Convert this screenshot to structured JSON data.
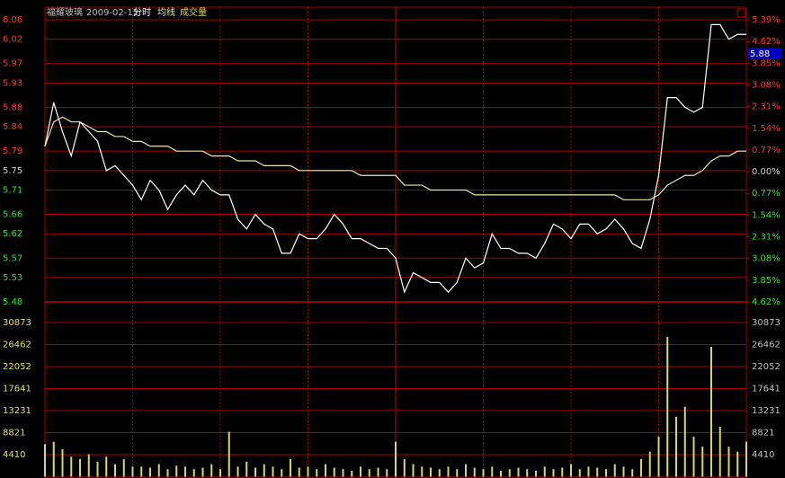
{
  "header": {
    "title": "福耀玻璃",
    "date": "2009-02-12",
    "labels": [
      "分时",
      "均线",
      "成交量"
    ],
    "price_box": 5.88
  },
  "chart_data": [
    {
      "type": "line",
      "grid": true,
      "ylim": [
        5.48,
        6.06
      ],
      "yticks": [
        6.06,
        6.02,
        5.97,
        5.93,
        5.88,
        5.84,
        5.79,
        5.75,
        5.71,
        5.66,
        5.62,
        5.57,
        5.53,
        5.48
      ],
      "y2lim": [
        -4.62,
        5.39
      ],
      "y2ticks": [
        {
          "value": 5.39,
          "label": "5.39%"
        },
        {
          "value": 4.62,
          "label": "4.62%"
        },
        {
          "value": 3.85,
          "label": "3.85%"
        },
        {
          "value": 3.08,
          "label": "3.08%"
        },
        {
          "value": 2.31,
          "label": "2.31%"
        },
        {
          "value": 1.54,
          "label": "1.54%"
        },
        {
          "value": 0.77,
          "label": "0.77%"
        },
        {
          "value": 0,
          "label": "0.00%"
        },
        {
          "value": -0.77,
          "label": "0.77%"
        },
        {
          "value": -1.54,
          "label": "1.54%"
        },
        {
          "value": -2.31,
          "label": "2.31%"
        },
        {
          "value": -3.08,
          "label": "3.08%"
        },
        {
          "value": -3.85,
          "label": "3.85%"
        },
        {
          "value": -4.62,
          "label": "4.62%"
        }
      ],
      "series": [
        {
          "color": "#ffffff",
          "values": [
            5.8,
            5.89,
            5.83,
            5.78,
            5.85,
            5.83,
            5.81,
            5.75,
            5.76,
            5.74,
            5.72,
            5.69,
            5.73,
            5.71,
            5.67,
            5.7,
            5.72,
            5.7,
            5.73,
            5.71,
            5.7,
            5.7,
            5.65,
            5.63,
            5.66,
            5.64,
            5.63,
            5.58,
            5.58,
            5.62,
            5.61,
            5.61,
            5.63,
            5.66,
            5.64,
            5.61,
            5.61,
            5.6,
            5.59,
            5.59,
            5.57,
            5.5,
            5.54,
            5.53,
            5.52,
            5.52,
            5.5,
            5.52,
            5.57,
            5.55,
            5.56,
            5.62,
            5.59,
            5.59,
            5.58,
            5.58,
            5.57,
            5.6,
            5.64,
            5.63,
            5.61,
            5.64,
            5.64,
            5.62,
            5.63,
            5.65,
            5.63,
            5.6,
            5.59,
            5.65,
            5.74,
            5.9,
            5.9,
            5.88,
            5.87,
            5.88,
            6.05,
            6.05,
            6.02,
            6.03,
            6.03
          ]
        },
        {
          "color": "#e8e8a8",
          "values": [
            5.8,
            5.85,
            5.86,
            5.85,
            5.85,
            5.84,
            5.83,
            5.83,
            5.82,
            5.82,
            5.81,
            5.81,
            5.8,
            5.8,
            5.8,
            5.79,
            5.79,
            5.79,
            5.79,
            5.78,
            5.78,
            5.78,
            5.77,
            5.77,
            5.77,
            5.76,
            5.76,
            5.76,
            5.76,
            5.75,
            5.75,
            5.75,
            5.75,
            5.75,
            5.75,
            5.75,
            5.74,
            5.74,
            5.74,
            5.74,
            5.74,
            5.72,
            5.72,
            5.72,
            5.71,
            5.71,
            5.71,
            5.71,
            5.71,
            5.7,
            5.7,
            5.7,
            5.7,
            5.7,
            5.7,
            5.7,
            5.7,
            5.7,
            5.7,
            5.7,
            5.7,
            5.7,
            5.7,
            5.7,
            5.7,
            5.7,
            5.69,
            5.69,
            5.69,
            5.69,
            5.7,
            5.72,
            5.73,
            5.74,
            5.74,
            5.75,
            5.77,
            5.78,
            5.78,
            5.79,
            5.79
          ]
        }
      ]
    },
    {
      "type": "bar",
      "grid": true,
      "color": "#d8d860",
      "ylim": [
        0,
        35282
      ],
      "yticks": [
        30873,
        26462,
        22052,
        17641,
        13231,
        8821,
        4410
      ],
      "values": [
        6500,
        7000,
        5500,
        4000,
        3500,
        4500,
        3000,
        4000,
        2500,
        3500,
        2000,
        2000,
        1800,
        2500,
        1500,
        2200,
        2000,
        1500,
        1800,
        2500,
        1500,
        9000,
        2000,
        3000,
        1800,
        2500,
        2000,
        1500,
        3500,
        1800,
        2000,
        1500,
        2500,
        1800,
        1500,
        1200,
        2000,
        1500,
        1800,
        1500,
        7000,
        3500,
        2500,
        2000,
        1800,
        1500,
        2000,
        1500,
        2500,
        1800,
        1500,
        2000,
        1200,
        1500,
        1800,
        1500,
        1200,
        2000,
        1500,
        1800,
        2500,
        1500,
        2000,
        1800,
        1500,
        2500,
        2000,
        1500,
        3500,
        5000,
        8000,
        28000,
        12000,
        14000,
        8000,
        6000,
        26000,
        10000,
        6000,
        5000,
        7000
      ]
    }
  ]
}
